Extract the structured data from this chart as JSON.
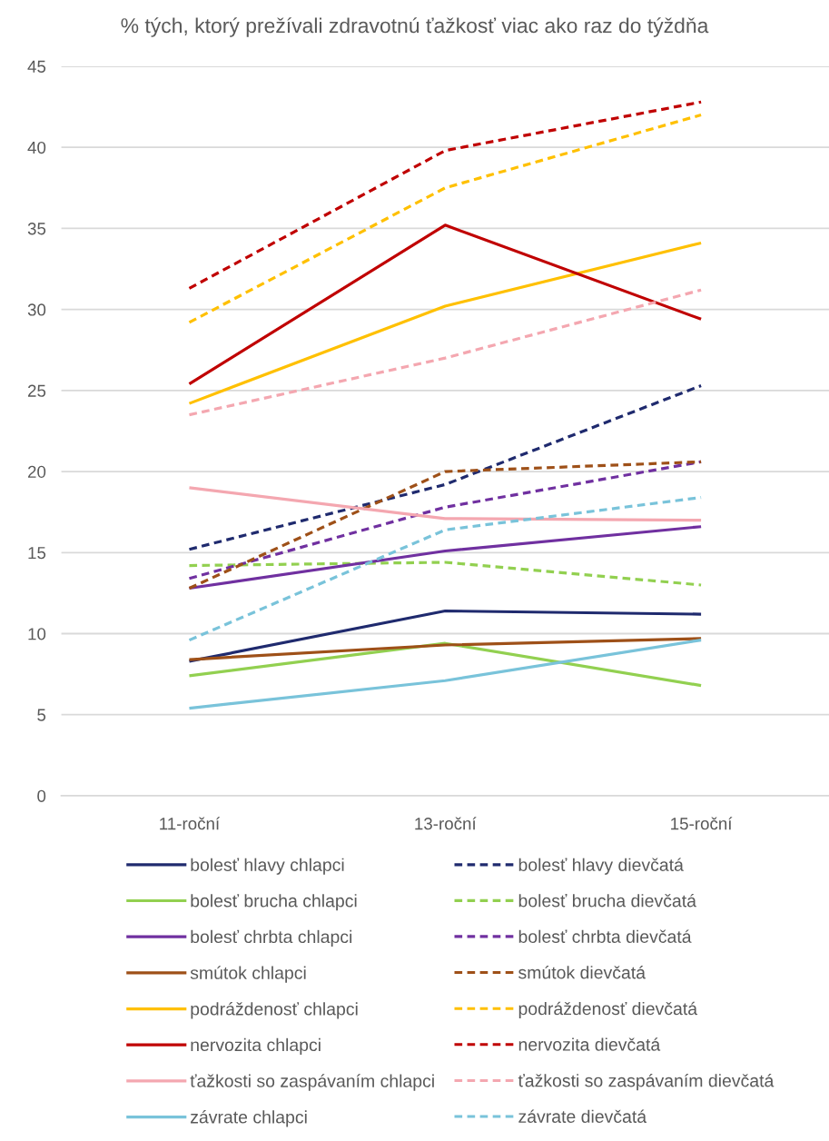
{
  "chart_data": {
    "type": "line",
    "title": "% tých, ktorý prežívali zdravotnú ťažkosť viac ako raz do týždňa",
    "categories": [
      "11-roční",
      "13-roční",
      "15-roční"
    ],
    "ylim": [
      0,
      45
    ],
    "yticks": [
      0,
      5,
      10,
      15,
      20,
      25,
      30,
      35,
      40,
      45
    ],
    "grid": "y",
    "legend": "bottom",
    "series": [
      {
        "name": "bolesť hlavy chlapci",
        "color": "#1f2a6e",
        "line_style": "solid",
        "values": [
          8.3,
          11.4,
          11.2
        ]
      },
      {
        "name": "bolesť hlavy dievčatá",
        "color": "#1f2a6e",
        "line_style": "dashed",
        "values": [
          15.2,
          19.2,
          25.3
        ]
      },
      {
        "name": "bolesť brucha chlapci",
        "color": "#92d050",
        "line_style": "solid",
        "values": [
          7.4,
          9.4,
          6.8
        ]
      },
      {
        "name": "bolesť brucha dievčatá",
        "color": "#92d050",
        "line_style": "dashed",
        "values": [
          14.2,
          14.4,
          13.0
        ]
      },
      {
        "name": "bolesť chrbta chlapci",
        "color": "#7030a0",
        "line_style": "solid",
        "values": [
          12.8,
          15.1,
          16.6
        ]
      },
      {
        "name": "bolesť chrbta dievčatá",
        "color": "#7030a0",
        "line_style": "dashed",
        "values": [
          13.4,
          17.8,
          20.6
        ]
      },
      {
        "name": "smútok chlapci",
        "color": "#9e5018",
        "line_style": "solid",
        "values": [
          8.4,
          9.3,
          9.7
        ]
      },
      {
        "name": "smútok dievčatá",
        "color": "#9e5018",
        "line_style": "dashed",
        "values": [
          12.8,
          20.0,
          20.6
        ]
      },
      {
        "name": "podráždenosť chlapci",
        "color": "#ffc000",
        "line_style": "solid",
        "values": [
          24.2,
          30.2,
          34.1
        ]
      },
      {
        "name": "podráždenosť dievčatá",
        "color": "#ffc000",
        "line_style": "dashed",
        "values": [
          29.2,
          37.5,
          42.0
        ]
      },
      {
        "name": "nervozita chlapci",
        "color": "#c00000",
        "line_style": "solid",
        "values": [
          25.4,
          35.2,
          29.4
        ]
      },
      {
        "name": "nervozita dievčatá",
        "color": "#c00000",
        "line_style": "dashed",
        "values": [
          31.3,
          39.8,
          42.8
        ]
      },
      {
        "name": "ťažkosti so zaspávaním chlapci",
        "color": "#f4a7b0",
        "line_style": "solid",
        "values": [
          19.0,
          17.1,
          17.0
        ]
      },
      {
        "name": "ťažkosti so zaspávaním dievčatá",
        "color": "#f4a7b0",
        "line_style": "dashed",
        "values": [
          23.5,
          27.0,
          31.2
        ]
      },
      {
        "name": "závrate chlapci",
        "color": "#79c3da",
        "line_style": "solid",
        "values": [
          5.4,
          7.1,
          9.6
        ]
      },
      {
        "name": "závrate dievčatá",
        "color": "#79c3da",
        "line_style": "dashed",
        "values": [
          9.6,
          16.4,
          18.4
        ]
      }
    ]
  }
}
